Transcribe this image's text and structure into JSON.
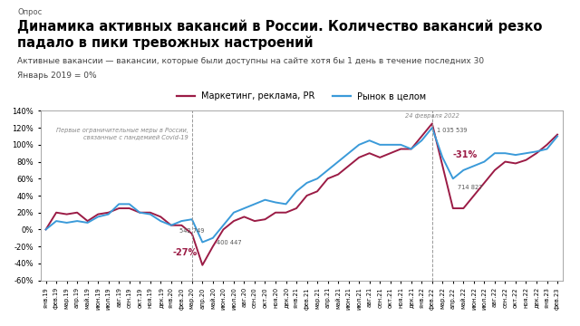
{
  "chart_data": {
    "type": "line",
    "kicker": "Опрос",
    "title": "Динамика активных вакансий в России. Количество вакансий резко падало в пики тревожных настроений",
    "subtitle": "Активные вакансии — вакансии, которые были доступны на сайте хотя бы 1 день в течение последних 30",
    "note": "Январь 2019 = 0%",
    "categories": [
      "янв.19",
      "фев.19",
      "мар.19",
      "апр.19",
      "май.19",
      "июн.19",
      "июл.19",
      "авг.19",
      "сен.19",
      "окт.19",
      "ноя.19",
      "дек.19",
      "янв.20",
      "фев.20",
      "мар.20",
      "апр.20",
      "май.20",
      "июн.20",
      "июл.20",
      "авг.20",
      "сен.20",
      "окт.20",
      "ноя.20",
      "дек.20",
      "янв.21",
      "фев.21",
      "мар.21",
      "апр.21",
      "май.21",
      "июн.21",
      "июл.21",
      "авг.21",
      "сен.21",
      "окт.21",
      "ноя.21",
      "дек.21",
      "янв.22",
      "фев.22",
      "мар.22",
      "апр.22",
      "май.22",
      "июн.22",
      "июл.22",
      "авг.22",
      "сен.22",
      "окт.22",
      "ноя.22",
      "дек.22",
      "янв.23",
      "фев.23"
    ],
    "series": [
      {
        "name": "Маркетинг, реклама, PR",
        "color": "#9b1b45",
        "values": [
          0,
          20,
          18,
          20,
          10,
          18,
          20,
          25,
          25,
          20,
          20,
          15,
          5,
          5,
          -5,
          -42,
          -20,
          0,
          10,
          15,
          10,
          12,
          20,
          20,
          25,
          40,
          45,
          60,
          65,
          75,
          85,
          90,
          85,
          90,
          95,
          95,
          110,
          125,
          75,
          25,
          25,
          40,
          55,
          70,
          80,
          78,
          82,
          90,
          100,
          112
        ]
      },
      {
        "name": "Рынок в целом",
        "color": "#3a9ad9",
        "values": [
          0,
          10,
          8,
          10,
          8,
          15,
          18,
          30,
          30,
          20,
          18,
          10,
          5,
          10,
          12,
          -15,
          -10,
          5,
          20,
          25,
          30,
          35,
          32,
          30,
          45,
          55,
          60,
          70,
          80,
          90,
          100,
          105,
          100,
          100,
          100,
          95,
          105,
          120,
          85,
          60,
          70,
          75,
          80,
          90,
          90,
          88,
          90,
          92,
          95,
          110
        ]
      }
    ],
    "annotations": [
      {
        "text": "Первые ограничительные меры в России,\nсвязанные с пандемией Covid-19",
        "x": "мар.20",
        "line_style": "dashed"
      },
      {
        "text": "24 февраля 2022",
        "x": "фев.22",
        "line_style": "dashed"
      },
      {
        "text": "542 749",
        "x": "мар.20"
      },
      {
        "text": "400 447",
        "x": "май.20"
      },
      {
        "text": "-27%",
        "x": "апр.20"
      },
      {
        "text": "1 035 539",
        "x": "фев.22"
      },
      {
        "text": "714 827",
        "x": "апр.22"
      },
      {
        "text": "-31%",
        "x": "мар.22"
      }
    ],
    "ylim": [
      -60,
      140
    ],
    "yticks": [
      {
        "value": -60,
        "label": "-60%"
      },
      {
        "value": -40,
        "label": "-40%"
      },
      {
        "value": -20,
        "label": "-20%"
      },
      {
        "value": 0,
        "label": "0%"
      },
      {
        "value": 20,
        "label": "20%"
      },
      {
        "value": 40,
        "label": "40%"
      },
      {
        "value": 60,
        "label": "60%"
      },
      {
        "value": 80,
        "label": "80%"
      },
      {
        "value": 100,
        "label": "100%"
      },
      {
        "value": 120,
        "label": "120%"
      },
      {
        "value": 140,
        "label": "140%"
      }
    ],
    "grid": false,
    "legend": "upper center"
  }
}
